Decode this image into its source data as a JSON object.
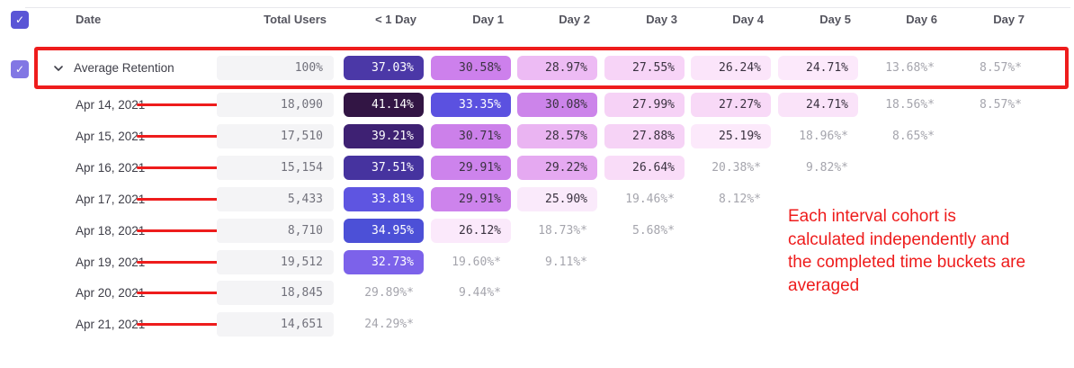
{
  "header": {
    "columns": [
      "Date",
      "Total Users",
      "< 1 Day",
      "Day 1",
      "Day 2",
      "Day 3",
      "Day 4",
      "Day 5",
      "Day 6",
      "Day 7"
    ]
  },
  "average_row": {
    "label": "Average Retention",
    "total_users": "100%",
    "cells": [
      {
        "value": "37.03%",
        "bg": "#4b38a7",
        "fg": "#ffffff"
      },
      {
        "value": "30.58%",
        "bg": "#cd80ec",
        "fg": "#3a3240"
      },
      {
        "value": "28.97%",
        "bg": "#edbbf4",
        "fg": "#3a3240"
      },
      {
        "value": "27.55%",
        "bg": "#f7d4f7",
        "fg": "#3a3240"
      },
      {
        "value": "26.24%",
        "bg": "#fbe5fa",
        "fg": "#3a3240"
      },
      {
        "value": "24.71%",
        "bg": "#fce9fb",
        "fg": "#3a3240"
      },
      {
        "value": "13.68%*",
        "bg": "",
        "fg": "#a5a5ad"
      },
      {
        "value": "8.57%*",
        "bg": "",
        "fg": "#a5a5ad"
      }
    ]
  },
  "rows": [
    {
      "date": "Apr 14, 2021",
      "total_users": "18,090",
      "cells": [
        {
          "value": "41.14%",
          "bg": "#321544",
          "fg": "#ffffff"
        },
        {
          "value": "33.35%",
          "bg": "#5b51e0",
          "fg": "#ffffff"
        },
        {
          "value": "30.08%",
          "bg": "#cc84ea",
          "fg": "#3a3240"
        },
        {
          "value": "27.99%",
          "bg": "#f6d2f6",
          "fg": "#3a3240"
        },
        {
          "value": "27.27%",
          "bg": "#f8d9f7",
          "fg": "#3a3240"
        },
        {
          "value": "24.71%",
          "bg": "#fae3f9",
          "fg": "#3a3240"
        },
        {
          "value": "18.56%*",
          "bg": "",
          "fg": "#a5a5ad"
        },
        {
          "value": "8.57%*",
          "bg": "",
          "fg": "#a5a5ad"
        }
      ]
    },
    {
      "date": "Apr 15, 2021",
      "total_users": "17,510",
      "cells": [
        {
          "value": "39.21%",
          "bg": "#3e2173",
          "fg": "#ffffff"
        },
        {
          "value": "30.71%",
          "bg": "#cc80ea",
          "fg": "#3a3240"
        },
        {
          "value": "28.57%",
          "bg": "#eab4f2",
          "fg": "#3a3240"
        },
        {
          "value": "27.88%",
          "bg": "#f6d3f6",
          "fg": "#3a3240"
        },
        {
          "value": "25.19%",
          "bg": "#fce9fb",
          "fg": "#3a3240"
        },
        {
          "value": "18.96%*",
          "bg": "",
          "fg": "#a5a5ad"
        },
        {
          "value": "8.65%*",
          "bg": "",
          "fg": "#a5a5ad"
        },
        null
      ]
    },
    {
      "date": "Apr 16, 2021",
      "total_users": "15,154",
      "cells": [
        {
          "value": "37.51%",
          "bg": "#46339f",
          "fg": "#ffffff"
        },
        {
          "value": "29.91%",
          "bg": "#cd83ec",
          "fg": "#3a3240"
        },
        {
          "value": "29.22%",
          "bg": "#e5a9f1",
          "fg": "#3a3240"
        },
        {
          "value": "26.64%",
          "bg": "#f9dcf8",
          "fg": "#3a3240"
        },
        {
          "value": "20.38%*",
          "bg": "",
          "fg": "#a5a5ad"
        },
        {
          "value": "9.82%*",
          "bg": "",
          "fg": "#a5a5ad"
        },
        null,
        null
      ]
    },
    {
      "date": "Apr 17, 2021",
      "total_users": "5,433",
      "cells": [
        {
          "value": "33.81%",
          "bg": "#5e55e1",
          "fg": "#ffffff"
        },
        {
          "value": "29.91%",
          "bg": "#cd83ec",
          "fg": "#3a3240"
        },
        {
          "value": "25.90%",
          "bg": "#faeafb",
          "fg": "#3a3240"
        },
        {
          "value": "19.46%*",
          "bg": "",
          "fg": "#a5a5ad"
        },
        {
          "value": "8.12%*",
          "bg": "",
          "fg": "#a5a5ad"
        },
        null,
        null,
        null
      ]
    },
    {
      "date": "Apr 18, 2021",
      "total_users": "8,710",
      "cells": [
        {
          "value": "34.95%",
          "bg": "#4c50d7",
          "fg": "#ffffff"
        },
        {
          "value": "26.12%",
          "bg": "#fbe9fb",
          "fg": "#3a3240"
        },
        {
          "value": "18.73%*",
          "bg": "",
          "fg": "#a5a5ad"
        },
        {
          "value": "5.68%*",
          "bg": "",
          "fg": "#a5a5ad"
        },
        null,
        null,
        null,
        null
      ]
    },
    {
      "date": "Apr 19, 2021",
      "total_users": "19,512",
      "cells": [
        {
          "value": "32.73%",
          "bg": "#7c62ea",
          "fg": "#ffffff"
        },
        {
          "value": "19.60%*",
          "bg": "",
          "fg": "#a5a5ad"
        },
        {
          "value": "9.11%*",
          "bg": "",
          "fg": "#a5a5ad"
        },
        null,
        null,
        null,
        null,
        null
      ]
    },
    {
      "date": "Apr 20, 2021",
      "total_users": "18,845",
      "cells": [
        {
          "value": "29.89%*",
          "bg": "",
          "fg": "#a5a5ad"
        },
        {
          "value": "9.44%*",
          "bg": "",
          "fg": "#a5a5ad"
        },
        null,
        null,
        null,
        null,
        null,
        null
      ]
    },
    {
      "date": "Apr 21, 2021",
      "total_users": "14,651",
      "cells": [
        {
          "value": "24.29%*",
          "bg": "",
          "fg": "#a5a5ad"
        },
        null,
        null,
        null,
        null,
        null,
        null,
        null
      ]
    }
  ],
  "annotation": {
    "lines": [
      "Each interval cohort is",
      "calculated independently and",
      "the completed time buckets are",
      "averaged"
    ],
    "color": "#ee1c1c"
  },
  "icons": {
    "header_checkbox": "check-icon",
    "row_checkbox": "check-icon",
    "expand": "chevron-down-icon"
  },
  "colors": {
    "annotation_red": "#ee1c1c",
    "checkbox_accent": "#5a55d6",
    "checkbox_accent_light": "#8277e4",
    "neutral_pill_bg": "#f4f4f6"
  }
}
